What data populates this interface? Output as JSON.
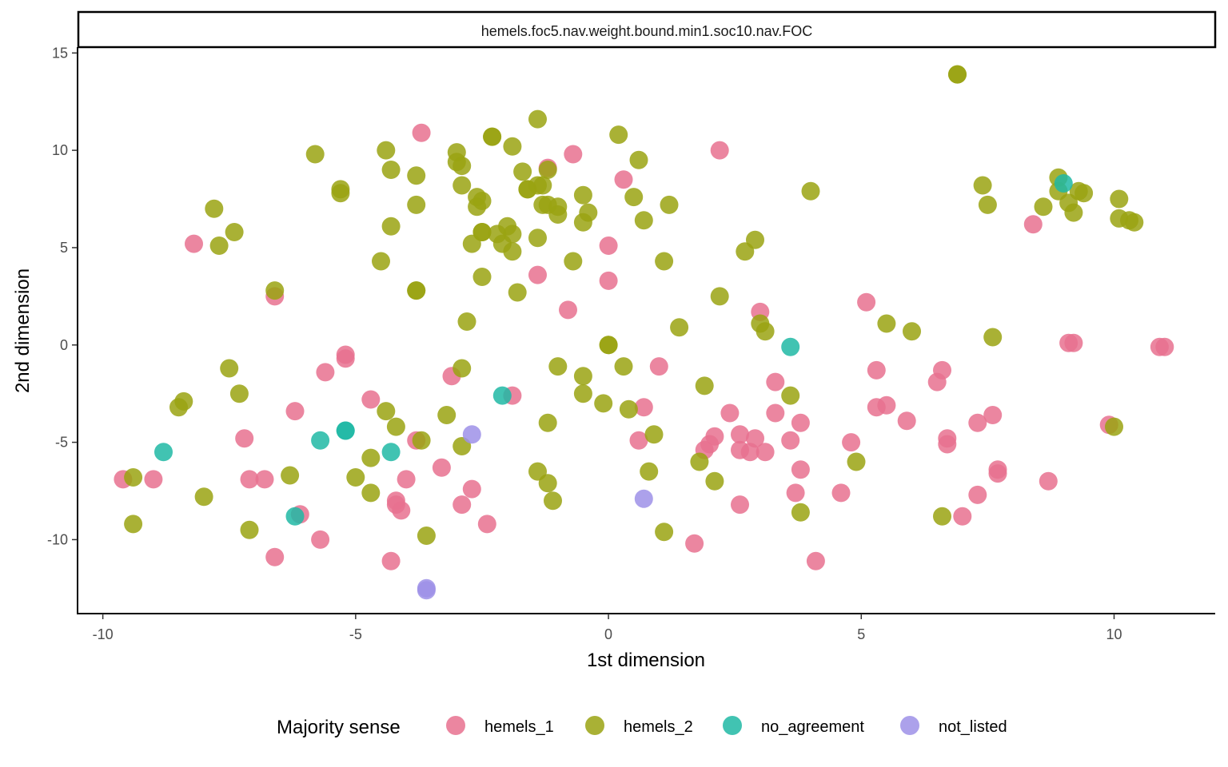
{
  "chart_data": {
    "type": "scatter",
    "title": "hemels.foc5.nav.weight.bound.min1.soc10.nav.FOC",
    "xlabel": "1st dimension",
    "ylabel": "2nd dimension",
    "xlim": [
      -10.5,
      12
    ],
    "ylim": [
      -13.8,
      15.3
    ],
    "xticks": [
      -10,
      -5,
      0,
      5,
      10
    ],
    "xtick_labels": [
      "-10",
      "-5",
      "0",
      "5",
      "10"
    ],
    "yticks": [
      -10,
      -5,
      0,
      5,
      10,
      15
    ],
    "ytick_labels": [
      "-10",
      "-5",
      "0",
      "5",
      "10",
      "15"
    ],
    "grid": false,
    "legend": {
      "title": "Majority sense",
      "position": "bottom",
      "entries": [
        "hemels_1",
        "hemels_2",
        "no_agreement",
        "not_listed"
      ]
    },
    "colors": {
      "hemels_1": "#E7718F",
      "hemels_2": "#9AA312",
      "no_agreement": "#20B8A4",
      "not_listed": "#9E90E8"
    },
    "series": [
      {
        "name": "hemels_1",
        "points": [
          [
            -3.7,
            10.9
          ],
          [
            2.2,
            10
          ],
          [
            -0.7,
            9.8
          ],
          [
            -1.2,
            9.1
          ],
          [
            0.3,
            8.5
          ],
          [
            -8.2,
            5.2
          ],
          [
            0,
            5.1
          ],
          [
            -1.4,
            3.6
          ],
          [
            0,
            3.3
          ],
          [
            -6.6,
            2.5
          ],
          [
            -0.8,
            1.8
          ],
          [
            3,
            1.7
          ],
          [
            5.1,
            2.2
          ],
          [
            8.4,
            6.2
          ],
          [
            9.2,
            0.1
          ],
          [
            9.1,
            0.1
          ],
          [
            11,
            -0.1
          ],
          [
            10.9,
            -0.1
          ],
          [
            -5.2,
            -0.5
          ],
          [
            -5.2,
            -0.7
          ],
          [
            -5.6,
            -1.4
          ],
          [
            -3.1,
            -1.6
          ],
          [
            -6.2,
            -3.4
          ],
          [
            -4.7,
            -2.8
          ],
          [
            -1.9,
            -2.6
          ],
          [
            -7.2,
            -4.8
          ],
          [
            -3.8,
            -4.9
          ],
          [
            0.7,
            -3.2
          ],
          [
            0.6,
            -4.9
          ],
          [
            1,
            -1.1
          ],
          [
            2.4,
            -3.5
          ],
          [
            2.1,
            -4.7
          ],
          [
            1.9,
            -5.4
          ],
          [
            2,
            -5.1
          ],
          [
            2.6,
            -4.6
          ],
          [
            2.6,
            -5.4
          ],
          [
            2.8,
            -5.5
          ],
          [
            3.1,
            -5.5
          ],
          [
            2.9,
            -4.8
          ],
          [
            3.3,
            -3.5
          ],
          [
            3.3,
            -1.9
          ],
          [
            3.8,
            -4
          ],
          [
            3.6,
            -4.9
          ],
          [
            3.8,
            -6.4
          ],
          [
            3.7,
            -7.6
          ],
          [
            2.6,
            -8.2
          ],
          [
            4.8,
            -5
          ],
          [
            5.3,
            -3.2
          ],
          [
            5.5,
            -3.1
          ],
          [
            5.3,
            -1.3
          ],
          [
            5.9,
            -3.9
          ],
          [
            6.5,
            -1.9
          ],
          [
            6.6,
            -1.3
          ],
          [
            6.7,
            -4.8
          ],
          [
            6.7,
            -5.1
          ],
          [
            7.3,
            -4
          ],
          [
            7.6,
            -3.6
          ],
          [
            7.3,
            -7.7
          ],
          [
            7.7,
            -6.4
          ],
          [
            7.7,
            -6.6
          ],
          [
            7,
            -8.8
          ],
          [
            4.6,
            -7.6
          ],
          [
            8.7,
            -7
          ],
          [
            9.9,
            -4.1
          ],
          [
            -9.6,
            -6.9
          ],
          [
            -9,
            -6.9
          ],
          [
            -7.1,
            -6.9
          ],
          [
            -6.8,
            -6.9
          ],
          [
            -6.1,
            -8.7
          ],
          [
            -5.7,
            -10
          ],
          [
            -6.6,
            -10.9
          ],
          [
            -4,
            -6.9
          ],
          [
            -4.2,
            -8
          ],
          [
            -4.2,
            -8.2
          ],
          [
            -4.1,
            -8.5
          ],
          [
            -4.3,
            -11.1
          ],
          [
            -3.3,
            -6.3
          ],
          [
            -2.7,
            -7.4
          ],
          [
            -2.9,
            -8.2
          ],
          [
            -2.4,
            -9.2
          ],
          [
            1.7,
            -10.2
          ],
          [
            4.1,
            -11.1
          ]
        ]
      },
      {
        "name": "hemels_2",
        "points": [
          [
            6.9,
            13.9
          ],
          [
            6.9,
            13.9
          ],
          [
            -1.4,
            11.6
          ],
          [
            -2.3,
            10.7
          ],
          [
            -2.3,
            10.7
          ],
          [
            0.2,
            10.8
          ],
          [
            -1.9,
            10.2
          ],
          [
            -4.4,
            10
          ],
          [
            -5.8,
            9.8
          ],
          [
            -3,
            9.9
          ],
          [
            -3,
            9.4
          ],
          [
            -2.9,
            9.2
          ],
          [
            -1.7,
            8.9
          ],
          [
            -1.2,
            9
          ],
          [
            0.6,
            9.5
          ],
          [
            -4.3,
            9
          ],
          [
            -3.8,
            8.7
          ],
          [
            -5.3,
            8
          ],
          [
            -5.3,
            7.8
          ],
          [
            -2.9,
            8.2
          ],
          [
            -2.6,
            7.6
          ],
          [
            -2.6,
            7.1
          ],
          [
            -2.5,
            7.4
          ],
          [
            -1.6,
            8
          ],
          [
            -1.6,
            8
          ],
          [
            -1.3,
            8.2
          ],
          [
            -1.3,
            7.2
          ],
          [
            -1.2,
            7.2
          ],
          [
            -0.5,
            7.7
          ],
          [
            -1,
            7.1
          ],
          [
            -1,
            6.7
          ],
          [
            0.5,
            7.6
          ],
          [
            -0.4,
            6.8
          ],
          [
            -0.5,
            6.3
          ],
          [
            1.2,
            7.2
          ],
          [
            0.7,
            6.4
          ],
          [
            -7.8,
            7
          ],
          [
            -7.4,
            5.8
          ],
          [
            -7.7,
            5.1
          ],
          [
            -3.8,
            7.2
          ],
          [
            -4.3,
            6.1
          ],
          [
            -2.5,
            5.8
          ],
          [
            -2.5,
            5.8
          ],
          [
            -2.7,
            5.2
          ],
          [
            -2.2,
            5.7
          ],
          [
            -2,
            6.1
          ],
          [
            -1.9,
            5.7
          ],
          [
            -2.1,
            5.2
          ],
          [
            -1.9,
            4.8
          ],
          [
            -1.4,
            5.5
          ],
          [
            -4.5,
            4.3
          ],
          [
            -2.5,
            3.5
          ],
          [
            -0.7,
            4.3
          ],
          [
            1.1,
            4.3
          ],
          [
            2.7,
            4.8
          ],
          [
            2.9,
            5.4
          ],
          [
            4,
            7.9
          ],
          [
            -3.8,
            2.8
          ],
          [
            -3.8,
            2.8
          ],
          [
            -6.6,
            2.8
          ],
          [
            -1.8,
            2.7
          ],
          [
            -2.8,
            1.2
          ],
          [
            2.2,
            2.5
          ],
          [
            3,
            1.1
          ],
          [
            3.1,
            0.7
          ],
          [
            1.4,
            0.9
          ],
          [
            5.5,
            1.1
          ],
          [
            6,
            0.7
          ],
          [
            7.6,
            0.4
          ],
          [
            0,
            0
          ],
          [
            0,
            0
          ],
          [
            7.4,
            8.2
          ],
          [
            7.5,
            7.2
          ],
          [
            8.9,
            8.6
          ],
          [
            8.9,
            7.9
          ],
          [
            9.1,
            7.3
          ],
          [
            9.3,
            7.9
          ],
          [
            9.4,
            7.8
          ],
          [
            9.2,
            6.8
          ],
          [
            8.6,
            7.1
          ],
          [
            10.1,
            7.5
          ],
          [
            10.1,
            6.5
          ],
          [
            10.3,
            6.4
          ],
          [
            10.4,
            6.3
          ],
          [
            -7.5,
            -1.2
          ],
          [
            -7.3,
            -2.5
          ],
          [
            -8.4,
            -2.9
          ],
          [
            -8.5,
            -3.2
          ],
          [
            -9.4,
            -6.8
          ],
          [
            -9.4,
            -9.2
          ],
          [
            -8,
            -7.8
          ],
          [
            -7.1,
            -9.5
          ],
          [
            -6.3,
            -6.7
          ],
          [
            -5,
            -6.8
          ],
          [
            -4.7,
            -7.6
          ],
          [
            -4.7,
            -5.8
          ],
          [
            -4.4,
            -3.4
          ],
          [
            -4.2,
            -4.2
          ],
          [
            -3.7,
            -4.9
          ],
          [
            -3.2,
            -3.6
          ],
          [
            -3.6,
            -9.8
          ],
          [
            -2.9,
            -1.2
          ],
          [
            -2.9,
            -5.2
          ],
          [
            -1,
            -1.1
          ],
          [
            -0.5,
            -1.6
          ],
          [
            -0.5,
            -2.5
          ],
          [
            -0.1,
            -3
          ],
          [
            -1.2,
            -4
          ],
          [
            0.3,
            -1.1
          ],
          [
            0.4,
            -3.3
          ],
          [
            0.9,
            -4.6
          ],
          [
            0.8,
            -6.5
          ],
          [
            -1.4,
            -6.5
          ],
          [
            -1.2,
            -7.1
          ],
          [
            -1.1,
            -8
          ],
          [
            1.1,
            -9.6
          ],
          [
            1.9,
            -2.1
          ],
          [
            1.8,
            -6
          ],
          [
            2.1,
            -7
          ],
          [
            3.6,
            -2.6
          ],
          [
            3.8,
            -8.6
          ],
          [
            4.9,
            -6
          ],
          [
            6.6,
            -8.8
          ],
          [
            10,
            -4.2
          ],
          [
            -1.4,
            8.2
          ]
        ]
      },
      {
        "name": "no_agreement",
        "points": [
          [
            9,
            8.3
          ],
          [
            3.6,
            -0.1
          ],
          [
            -2.1,
            -2.6
          ],
          [
            -5.2,
            -4.4
          ],
          [
            -5.2,
            -4.4
          ],
          [
            -5.7,
            -4.9
          ],
          [
            -4.3,
            -5.5
          ],
          [
            -8.8,
            -5.5
          ],
          [
            -6.2,
            -8.8
          ]
        ]
      },
      {
        "name": "not_listed",
        "points": [
          [
            -2.7,
            -4.6
          ],
          [
            0.7,
            -7.9
          ],
          [
            -3.6,
            -12.5
          ],
          [
            -3.6,
            -12.6
          ]
        ]
      }
    ]
  }
}
